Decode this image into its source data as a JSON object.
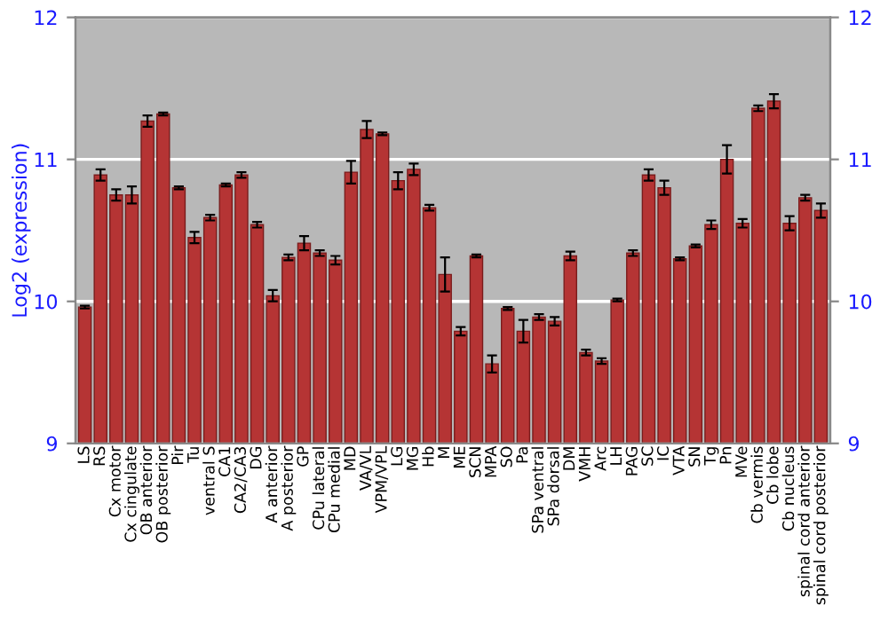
{
  "chart_data": {
    "type": "bar",
    "ylabel": "Log2 (expression)",
    "categories": [
      "LS",
      "RS",
      "Cx motor",
      "Cx cingulate",
      "OB anterior",
      "OB posterior",
      "Pir",
      "Tu",
      "ventral S",
      "CA1",
      "CA2/CA3",
      "DG",
      "A anterior",
      "A posterior",
      "GP",
      "CPu lateral",
      "CPu medial",
      "MD",
      "VA/VL",
      "VPM/VPL",
      "LG",
      "MG",
      "Hb",
      "M",
      "ME",
      "SCN",
      "MPA",
      "SO",
      "Pa",
      "SPa ventral",
      "SPa dorsal",
      "DM",
      "VMH",
      "Arc",
      "LH",
      "PAG",
      "SC",
      "IC",
      "VTA",
      "SN",
      "Tg",
      "Pn",
      "MVe",
      "Cb vermis",
      "Cb lobe",
      "Cb nucleus",
      "spinal cord anterior",
      "spinal cord posterior"
    ],
    "values": [
      9.96,
      10.89,
      10.75,
      10.75,
      11.27,
      11.32,
      10.8,
      10.45,
      10.59,
      10.82,
      10.89,
      10.54,
      10.04,
      10.31,
      10.41,
      10.34,
      10.29,
      10.91,
      11.21,
      11.18,
      10.85,
      10.93,
      10.66,
      10.19,
      9.79,
      10.32,
      9.56,
      9.95,
      9.79,
      9.89,
      9.86,
      10.32,
      9.64,
      9.58,
      10.01,
      10.34,
      10.89,
      10.8,
      10.3,
      10.39,
      10.54,
      11.0,
      10.55,
      11.36,
      11.41,
      10.55,
      10.73,
      10.64
    ],
    "errors": [
      0.01,
      0.04,
      0.04,
      0.06,
      0.04,
      0.01,
      0.01,
      0.04,
      0.02,
      0.01,
      0.02,
      0.02,
      0.04,
      0.02,
      0.05,
      0.02,
      0.03,
      0.08,
      0.06,
      0.01,
      0.06,
      0.04,
      0.02,
      0.12,
      0.03,
      0.01,
      0.06,
      0.01,
      0.08,
      0.02,
      0.03,
      0.03,
      0.02,
      0.02,
      0.01,
      0.02,
      0.04,
      0.05,
      0.01,
      0.01,
      0.03,
      0.1,
      0.03,
      0.02,
      0.05,
      0.05,
      0.02,
      0.05
    ],
    "color": "#b53434",
    "ylim": [
      9,
      12
    ],
    "yticks": [
      9,
      10,
      11,
      12
    ],
    "y2lim": [
      9,
      12
    ],
    "y2ticks": [
      9,
      10,
      11,
      12
    ],
    "grid": "y",
    "legend": false
  }
}
